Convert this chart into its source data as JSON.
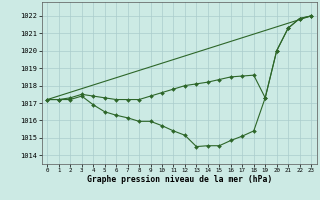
{
  "title": "Graphe pression niveau de la mer (hPa)",
  "background_color": "#cceae4",
  "line_color": "#2d6629",
  "grid_color": "#aacccc",
  "xlim": [
    -0.5,
    23.5
  ],
  "ylim": [
    1013.5,
    1022.8
  ],
  "yticks": [
    1014,
    1015,
    1016,
    1017,
    1018,
    1019,
    1020,
    1021,
    1022
  ],
  "x_ticks": [
    0,
    1,
    2,
    3,
    4,
    5,
    6,
    7,
    8,
    9,
    10,
    11,
    12,
    13,
    14,
    15,
    16,
    17,
    18,
    19,
    20,
    21,
    22,
    23
  ],
  "series_straight": {
    "x": [
      0,
      23
    ],
    "y": [
      1017.2,
      1022.0
    ]
  },
  "series_upper": {
    "x": [
      0,
      1,
      2,
      3,
      4,
      5,
      6,
      7,
      8,
      9,
      10,
      11,
      12,
      13,
      14,
      15,
      16,
      17,
      18,
      19,
      20,
      21,
      22,
      23
    ],
    "y": [
      1017.2,
      1017.2,
      1017.3,
      1017.5,
      1017.4,
      1017.3,
      1017.2,
      1017.2,
      1017.2,
      1017.4,
      1017.6,
      1017.8,
      1018.0,
      1018.1,
      1018.2,
      1018.35,
      1018.5,
      1018.55,
      1018.6,
      1017.3,
      1020.0,
      1021.3,
      1021.85,
      1022.0
    ]
  },
  "series_lower": {
    "x": [
      0,
      1,
      2,
      3,
      4,
      5,
      6,
      7,
      8,
      9,
      10,
      11,
      12,
      13,
      14,
      15,
      16,
      17,
      18,
      19,
      20,
      21,
      22,
      23
    ],
    "y": [
      1017.2,
      1017.2,
      1017.2,
      1017.4,
      1016.9,
      1016.5,
      1016.3,
      1016.15,
      1015.95,
      1015.95,
      1015.7,
      1015.4,
      1015.15,
      1014.5,
      1014.55,
      1014.55,
      1014.85,
      1015.1,
      1015.4,
      1017.3,
      1020.0,
      1021.3,
      1021.85,
      1022.0
    ]
  }
}
